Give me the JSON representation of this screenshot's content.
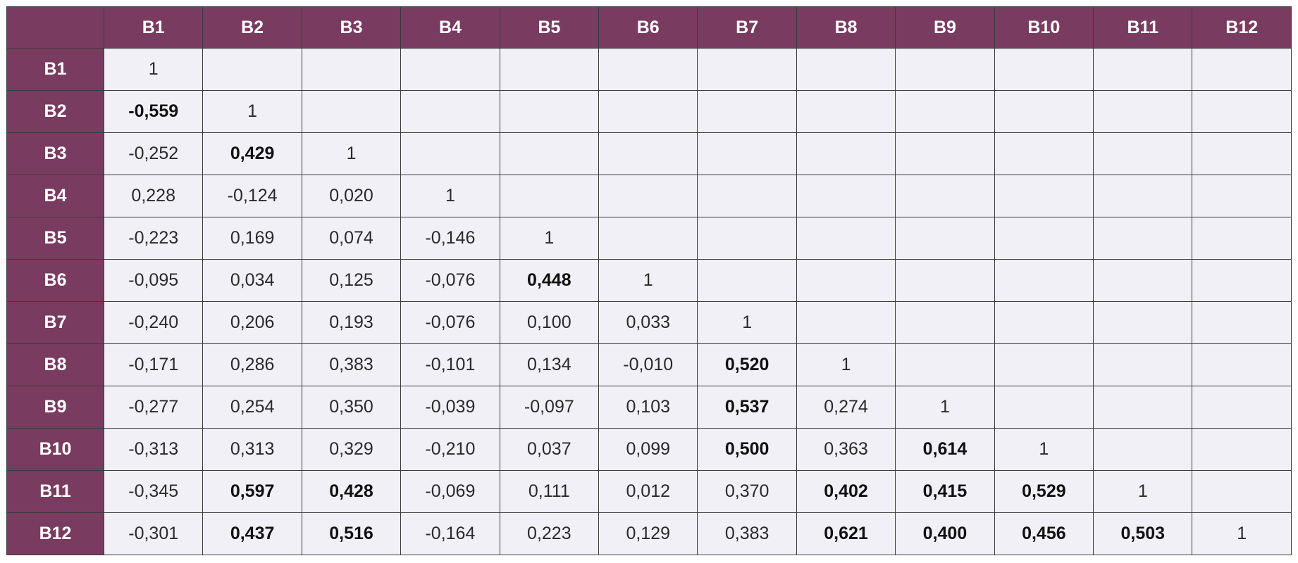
{
  "table": {
    "header": [
      "B1",
      "B2",
      "B3",
      "B4",
      "B5",
      "B6",
      "B7",
      "B8",
      "B9",
      "B10",
      "B11",
      "B12"
    ],
    "rows": [
      {
        "label": "B1",
        "cells": [
          "1"
        ]
      },
      {
        "label": "B2",
        "cells": [
          {
            "text": "-0,559",
            "bold": true
          },
          "1"
        ]
      },
      {
        "label": "B3",
        "cells": [
          "-0,252",
          {
            "text": "0,429",
            "bold": true
          },
          "1"
        ]
      },
      {
        "label": "B4",
        "cells": [
          "0,228",
          "-0,124",
          "0,020",
          "1"
        ]
      },
      {
        "label": "B5",
        "cells": [
          "-0,223",
          "0,169",
          "0,074",
          "-0,146",
          "1"
        ]
      },
      {
        "label": "B6",
        "cells": [
          "-0,095",
          "0,034",
          "0,125",
          "-0,076",
          {
            "text": "0,448",
            "bold": true
          },
          "1"
        ]
      },
      {
        "label": "B7",
        "cells": [
          "-0,240",
          "0,206",
          "0,193",
          "-0,076",
          "0,100",
          "0,033",
          "1"
        ]
      },
      {
        "label": "B8",
        "cells": [
          "-0,171",
          "0,286",
          "0,383",
          "-0,101",
          "0,134",
          "-0,010",
          {
            "text": "0,520",
            "bold": true
          },
          "1"
        ]
      },
      {
        "label": "B9",
        "cells": [
          "-0,277",
          "0,254",
          "0,350",
          "-0,039",
          "-0,097",
          "0,103",
          {
            "text": "0,537",
            "bold": true
          },
          "0,274",
          "1"
        ]
      },
      {
        "label": "B10",
        "cells": [
          "-0,313",
          "0,313",
          "0,329",
          "-0,210",
          "0,037",
          "0,099",
          {
            "text": "0,500",
            "bold": true
          },
          "0,363",
          {
            "text": "0,614",
            "bold": true
          },
          "1"
        ]
      },
      {
        "label": "B11",
        "cells": [
          "-0,345",
          {
            "text": "0,597",
            "bold": true
          },
          {
            "text": "0,428",
            "bold": true
          },
          "-0,069",
          "0,111",
          "0,012",
          "0,370",
          {
            "text": "0,402",
            "bold": true
          },
          {
            "text": "0,415",
            "bold": true
          },
          {
            "text": "0,529",
            "bold": true
          },
          "1"
        ]
      },
      {
        "label": "B12",
        "cells": [
          "-0,301",
          {
            "text": "0,437",
            "bold": true
          },
          {
            "text": "0,516",
            "bold": true
          },
          "-0,164",
          "0,223",
          "0,129",
          "0,383",
          {
            "text": "0,621",
            "bold": true
          },
          {
            "text": "0,400",
            "bold": true
          },
          {
            "text": "0,456",
            "bold": true
          },
          {
            "text": "0,503",
            "bold": true
          },
          "1"
        ]
      }
    ]
  }
}
